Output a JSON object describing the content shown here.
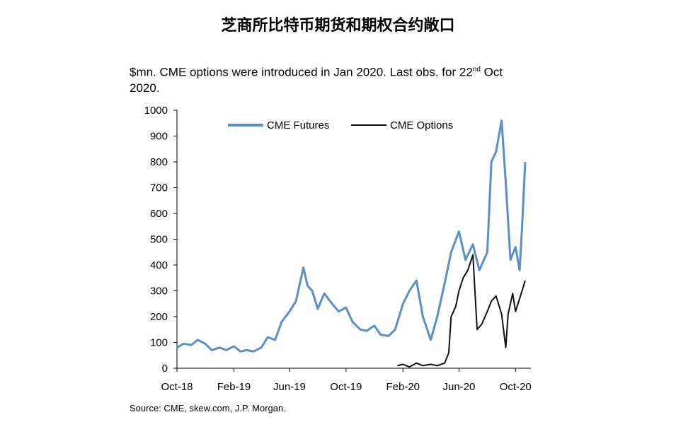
{
  "chart_data": {
    "type": "line",
    "title": "芝商所比特币期货和期权合约敞口",
    "subtitle_parts": [
      "$mn. CME options were introduced in Jan 2020. Last obs. for 22",
      "nd",
      " Oct",
      "2020."
    ],
    "source": "Source: CME, skew.com, J.P. Morgan.",
    "ylim": [
      0,
      1000
    ],
    "yticks": [
      "0",
      "100",
      "200",
      "300",
      "400",
      "500",
      "600",
      "700",
      "800",
      "900",
      "1000"
    ],
    "xticks": [
      "Oct-18",
      "Feb-19",
      "Jun-19",
      "Oct-19",
      "Feb-20",
      "Jun-20",
      "Oct-20"
    ],
    "legend_position": "top",
    "grid": false,
    "series": [
      {
        "name": "CME Futures",
        "color": "#5b8fc9",
        "points": [
          [
            "2018-10-01",
            80
          ],
          [
            "2018-10-15",
            95
          ],
          [
            "2018-11-01",
            90
          ],
          [
            "2018-11-15",
            110
          ],
          [
            "2018-12-01",
            95
          ],
          [
            "2018-12-15",
            70
          ],
          [
            "2019-01-01",
            80
          ],
          [
            "2019-01-15",
            70
          ],
          [
            "2019-02-01",
            85
          ],
          [
            "2019-02-15",
            65
          ],
          [
            "2019-03-01",
            70
          ],
          [
            "2019-03-15",
            65
          ],
          [
            "2019-04-01",
            80
          ],
          [
            "2019-04-15",
            120
          ],
          [
            "2019-05-01",
            110
          ],
          [
            "2019-05-15",
            180
          ],
          [
            "2019-06-01",
            220
          ],
          [
            "2019-06-15",
            260
          ],
          [
            "2019-07-01",
            390
          ],
          [
            "2019-07-10",
            320
          ],
          [
            "2019-07-20",
            300
          ],
          [
            "2019-08-01",
            230
          ],
          [
            "2019-08-15",
            290
          ],
          [
            "2019-09-01",
            250
          ],
          [
            "2019-09-15",
            220
          ],
          [
            "2019-10-01",
            235
          ],
          [
            "2019-10-15",
            180
          ],
          [
            "2019-11-01",
            150
          ],
          [
            "2019-11-15",
            145
          ],
          [
            "2019-12-01",
            165
          ],
          [
            "2019-12-15",
            130
          ],
          [
            "2020-01-01",
            125
          ],
          [
            "2020-01-15",
            150
          ],
          [
            "2020-02-01",
            250
          ],
          [
            "2020-02-15",
            300
          ],
          [
            "2020-03-01",
            340
          ],
          [
            "2020-03-15",
            200
          ],
          [
            "2020-04-01",
            110
          ],
          [
            "2020-04-15",
            200
          ],
          [
            "2020-05-01",
            330
          ],
          [
            "2020-05-15",
            450
          ],
          [
            "2020-06-01",
            530
          ],
          [
            "2020-06-15",
            420
          ],
          [
            "2020-07-01",
            480
          ],
          [
            "2020-07-15",
            380
          ],
          [
            "2020-08-01",
            450
          ],
          [
            "2020-08-10",
            800
          ],
          [
            "2020-08-20",
            840
          ],
          [
            "2020-09-01",
            960
          ],
          [
            "2020-09-10",
            720
          ],
          [
            "2020-09-20",
            420
          ],
          [
            "2020-10-01",
            470
          ],
          [
            "2020-10-10",
            380
          ],
          [
            "2020-10-15",
            540
          ],
          [
            "2020-10-22",
            800
          ]
        ]
      },
      {
        "name": "CME Options",
        "color": "#111111",
        "points": [
          [
            "2020-01-20",
            10
          ],
          [
            "2020-02-01",
            15
          ],
          [
            "2020-02-15",
            5
          ],
          [
            "2020-03-01",
            20
          ],
          [
            "2020-03-15",
            10
          ],
          [
            "2020-04-01",
            15
          ],
          [
            "2020-04-15",
            10
          ],
          [
            "2020-05-01",
            20
          ],
          [
            "2020-05-10",
            60
          ],
          [
            "2020-05-15",
            200
          ],
          [
            "2020-05-25",
            240
          ],
          [
            "2020-06-01",
            300
          ],
          [
            "2020-06-10",
            350
          ],
          [
            "2020-06-20",
            380
          ],
          [
            "2020-07-01",
            440
          ],
          [
            "2020-07-10",
            150
          ],
          [
            "2020-07-20",
            170
          ],
          [
            "2020-08-01",
            220
          ],
          [
            "2020-08-10",
            260
          ],
          [
            "2020-08-20",
            280
          ],
          [
            "2020-09-01",
            210
          ],
          [
            "2020-09-10",
            80
          ],
          [
            "2020-09-15",
            210
          ],
          [
            "2020-09-25",
            290
          ],
          [
            "2020-10-01",
            220
          ],
          [
            "2020-10-10",
            270
          ],
          [
            "2020-10-22",
            340
          ]
        ]
      }
    ]
  }
}
